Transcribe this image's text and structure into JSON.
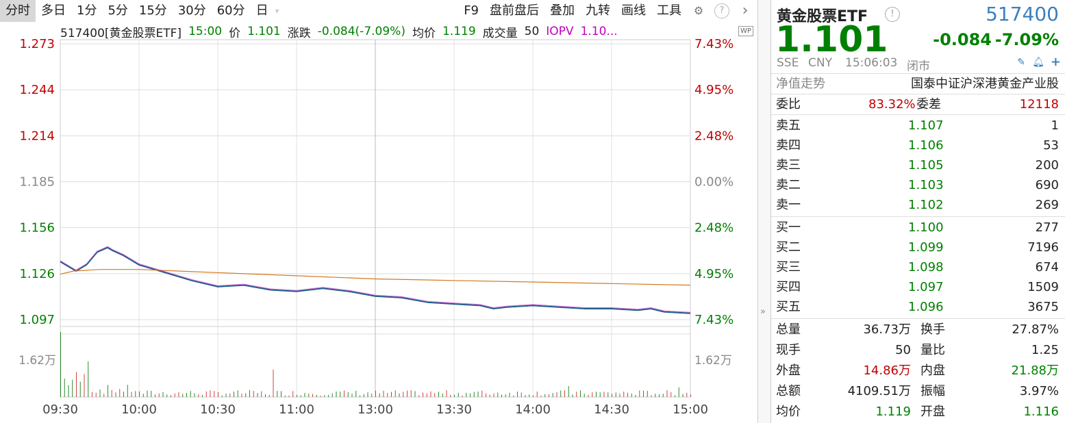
{
  "toolbar": {
    "tabs": [
      "分时",
      "多日",
      "1分",
      "5分",
      "15分",
      "30分",
      "60分",
      "日"
    ],
    "right_items": [
      "F9",
      "盘前盘后",
      "叠加",
      "九转",
      "画线",
      "工具"
    ],
    "icons": [
      "gear-icon",
      "help-icon",
      "chevron-right-icon"
    ]
  },
  "info": {
    "code_name": "517400[黄金股票ETF]",
    "time": "15:00",
    "price_label": "价",
    "price": "1.101",
    "change_label": "涨跌",
    "change": "-0.084(-7.09%)",
    "avg_label": "均价",
    "avg": "1.119",
    "vol_label": "成交量",
    "vol": "50",
    "iopv_label": "IOPV",
    "iopv": "1.10..."
  },
  "wp_badge": "WP",
  "chart_data": {
    "type": "line",
    "x_ticks": [
      "09:30",
      "10:00",
      "10:30",
      "11:00",
      "13:00",
      "13:30",
      "14:00",
      "14:30",
      "15:00"
    ],
    "y_ticks_left": [
      "1.273",
      "1.244",
      "1.214",
      "1.185",
      "1.156",
      "1.126",
      "1.097"
    ],
    "y_ticks_right": [
      "7.43%",
      "4.95%",
      "2.48%",
      "0.00%",
      "2.48%",
      "4.95%",
      "7.43%"
    ],
    "ylim": [
      1.097,
      1.273
    ],
    "volume_label": "1.62万",
    "volume_max": 16200,
    "series": [
      {
        "name": "价",
        "color": "#1f5f8b",
        "x": [
          0,
          2,
          6,
          10,
          14,
          18,
          20,
          24,
          30,
          40,
          50,
          60,
          70,
          80,
          90,
          100,
          110,
          120,
          130,
          140,
          150,
          160,
          165,
          170,
          180,
          190,
          200,
          210,
          220,
          225,
          230,
          240
        ],
        "y": [
          1.134,
          1.132,
          1.128,
          1.132,
          1.14,
          1.143,
          1.141,
          1.138,
          1.132,
          1.127,
          1.122,
          1.118,
          1.119,
          1.116,
          1.115,
          1.117,
          1.115,
          1.112,
          1.111,
          1.108,
          1.107,
          1.106,
          1.104,
          1.105,
          1.106,
          1.105,
          1.104,
          1.104,
          1.103,
          1.104,
          1.102,
          1.101
        ]
      },
      {
        "name": "均价",
        "color": "#d07a20",
        "x": [
          0,
          5,
          15,
          30,
          60,
          90,
          120,
          150,
          180,
          210,
          240
        ],
        "y": [
          1.126,
          1.128,
          1.129,
          1.129,
          1.127,
          1.125,
          1.123,
          1.122,
          1.121,
          1.12,
          1.119
        ]
      }
    ]
  },
  "panel": {
    "name": "黄金股票ETF",
    "code": "517400",
    "price": "1.101",
    "change": "-0.084",
    "change_pct": "-7.09%",
    "exchange": "SSE",
    "currency": "CNY",
    "time": "15:06:03",
    "status": "闭市",
    "nav_label": "净值走势",
    "index_name": "国泰中证沪深港黄金产业股",
    "weibi_label": "委比",
    "weibi": "83.32%",
    "weicha_label": "委差",
    "weicha": "12118",
    "asks": [
      {
        "label": "卖五",
        "price": "1.107",
        "vol": "1"
      },
      {
        "label": "卖四",
        "price": "1.106",
        "vol": "53"
      },
      {
        "label": "卖三",
        "price": "1.105",
        "vol": "200"
      },
      {
        "label": "卖二",
        "price": "1.103",
        "vol": "690"
      },
      {
        "label": "卖一",
        "price": "1.102",
        "vol": "269"
      }
    ],
    "bids": [
      {
        "label": "买一",
        "price": "1.100",
        "vol": "277"
      },
      {
        "label": "买二",
        "price": "1.099",
        "vol": "7196"
      },
      {
        "label": "买三",
        "price": "1.098",
        "vol": "674"
      },
      {
        "label": "买四",
        "price": "1.097",
        "vol": "1509"
      },
      {
        "label": "买五",
        "price": "1.096",
        "vol": "3675"
      }
    ],
    "stats": [
      {
        "l1": "总量",
        "v1": "36.73万",
        "c1": "#222",
        "l2": "换手",
        "v2": "27.87%",
        "c2": "#222"
      },
      {
        "l1": "现手",
        "v1": "50",
        "c1": "#222",
        "l2": "量比",
        "v2": "1.25",
        "c2": "#222"
      },
      {
        "l1": "外盘",
        "v1": "14.86万",
        "c1": "#c00000",
        "l2": "内盘",
        "v2": "21.88万",
        "c2": "#008000"
      },
      {
        "l1": "总额",
        "v1": "4109.51万",
        "c1": "#222",
        "l2": "振幅",
        "v2": "3.97%",
        "c2": "#222"
      },
      {
        "l1": "均价",
        "v1": "1.119",
        "c1": "#008000",
        "l2": "开盘",
        "v2": "1.116",
        "c2": "#008000"
      }
    ]
  }
}
